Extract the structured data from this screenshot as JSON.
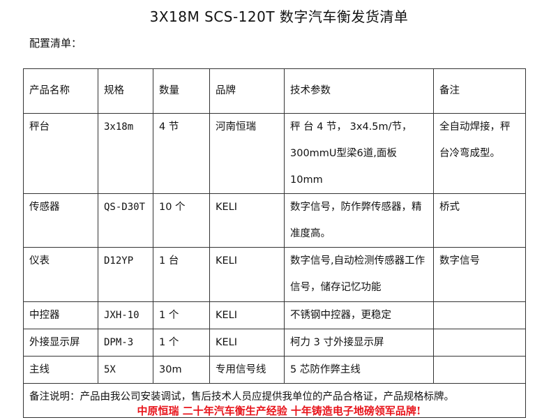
{
  "title": "3X18M SCS-120T 数字汽车衡发货清单",
  "subtitle": "配置清单：",
  "table": {
    "headers": [
      "产品名称",
      "规格",
      "数量",
      "品牌",
      "技术参数",
      "备注"
    ],
    "rows": [
      [
        "秤台",
        "3x18m",
        "4 节",
        "河南恒瑞",
        "秤 台 4 节， 3x4.5m/节，300mmU型梁6道,面板10mm",
        "全自动焊接，秤台冷弯成型。"
      ],
      [
        "传感器",
        "QS-D30T",
        "10 个",
        "KELI",
        "数字信号，防作弊传感器，精准度高。",
        "桥式"
      ],
      [
        "仪表",
        "D12YP",
        "1 台",
        "KELI",
        "数字信号,自动检测传感器工作信号，储存记忆功能",
        "数字信号"
      ],
      [
        "中控器",
        "JXH-10",
        "1 个",
        "KELI",
        "不锈钢中控器，更稳定",
        ""
      ],
      [
        "外接显示屏",
        "DPM-3",
        "1 个",
        "KELI",
        "柯力 3 寸外接显示屏",
        ""
      ],
      [
        "主线",
        "5X",
        "30m",
        "专用信号线",
        "5 芯防作弊主线",
        ""
      ]
    ],
    "note": "备注说明：产品由我公司安装调试，售后技术人员应提供我单位的产品合格证，产品规格标牌。"
  },
  "footer": "中原恒瑞  二十年汽车衡生产经验  十年铸造电子地磅领军品牌!",
  "colors": {
    "footer": "#e8141b"
  }
}
